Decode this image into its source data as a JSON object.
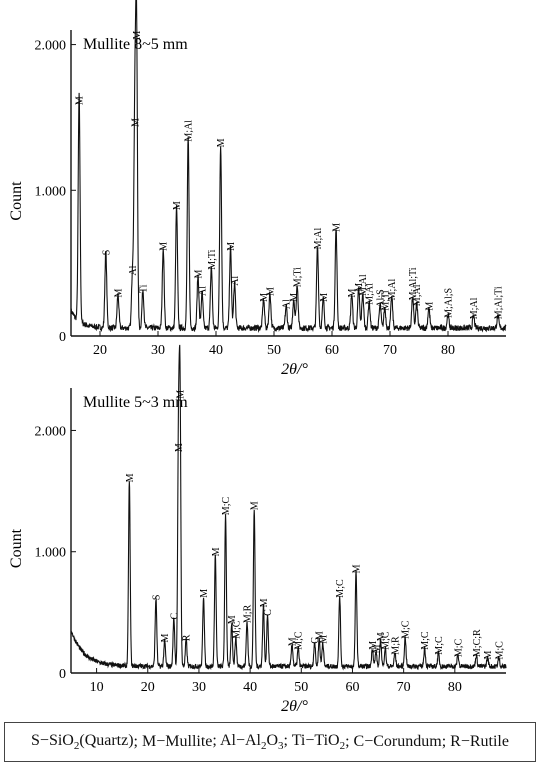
{
  "chart_data": [
    {
      "type": "line",
      "title": "Mullite 8~5 mm",
      "xlabel": "2θ/°",
      "ylabel": "Count",
      "xlim": [
        15,
        90
      ],
      "ylim": [
        0,
        2100
      ],
      "x_ticks": [
        20,
        30,
        40,
        50,
        60,
        70,
        80
      ],
      "y_ticks": [
        0,
        1000,
        2000
      ],
      "y_tick_labels": [
        "0",
        "1.000",
        "2.000"
      ],
      "peaks": [
        {
          "x": 16.4,
          "y": 1550,
          "label": "M"
        },
        {
          "x": 21.0,
          "y": 520,
          "label": "S"
        },
        {
          "x": 23.1,
          "y": 230,
          "label": "M"
        },
        {
          "x": 25.6,
          "y": 380,
          "label": "Al"
        },
        {
          "x": 26.0,
          "y": 1400,
          "label": "M"
        },
        {
          "x": 26.3,
          "y": 2000,
          "label": "M"
        },
        {
          "x": 27.4,
          "y": 260,
          "label": "Ti"
        },
        {
          "x": 30.9,
          "y": 550,
          "label": "M"
        },
        {
          "x": 33.2,
          "y": 830,
          "label": "M"
        },
        {
          "x": 35.2,
          "y": 1300,
          "label": "M;Al"
        },
        {
          "x": 36.9,
          "y": 360,
          "label": "M"
        },
        {
          "x": 37.6,
          "y": 240,
          "label": "Al"
        },
        {
          "x": 39.2,
          "y": 420,
          "label": "M;Ti"
        },
        {
          "x": 40.8,
          "y": 1260,
          "label": "M"
        },
        {
          "x": 42.5,
          "y": 550,
          "label": "M"
        },
        {
          "x": 43.2,
          "y": 310,
          "label": "Al"
        },
        {
          "x": 48.2,
          "y": 200,
          "label": "M"
        },
        {
          "x": 49.3,
          "y": 240,
          "label": "M"
        },
        {
          "x": 52.1,
          "y": 150,
          "label": "Al"
        },
        {
          "x": 53.4,
          "y": 200,
          "label": "M"
        },
        {
          "x": 54.0,
          "y": 300,
          "label": "M;Ti"
        },
        {
          "x": 57.5,
          "y": 560,
          "label": "M;Al"
        },
        {
          "x": 58.5,
          "y": 200,
          "label": "M"
        },
        {
          "x": 60.7,
          "y": 680,
          "label": "M"
        },
        {
          "x": 63.4,
          "y": 230,
          "label": "M"
        },
        {
          "x": 64.6,
          "y": 270,
          "label": "M"
        },
        {
          "x": 65.3,
          "y": 240,
          "label": "M;Al"
        },
        {
          "x": 66.4,
          "y": 180,
          "label": "M;Al"
        },
        {
          "x": 68.3,
          "y": 160,
          "label": "Al;S"
        },
        {
          "x": 69.1,
          "y": 140,
          "label": "M;Ti"
        },
        {
          "x": 70.3,
          "y": 210,
          "label": "M;Al"
        },
        {
          "x": 73.9,
          "y": 210,
          "label": "M;Al;Ti"
        },
        {
          "x": 74.6,
          "y": 170,
          "label": "M;Al"
        },
        {
          "x": 76.7,
          "y": 140,
          "label": "M"
        },
        {
          "x": 80.0,
          "y": 90,
          "label": "M;Al;S"
        },
        {
          "x": 84.4,
          "y": 80,
          "label": "M;Al"
        },
        {
          "x": 88.6,
          "y": 80,
          "label": "M;Al;Ti"
        }
      ]
    },
    {
      "type": "line",
      "title": "Mullite 5~3 mm",
      "xlabel": "2θ/°",
      "ylabel": "Count",
      "xlim": [
        5,
        90
      ],
      "ylim": [
        0,
        2350
      ],
      "x_ticks": [
        10,
        20,
        30,
        40,
        50,
        60,
        70,
        80
      ],
      "y_ticks": [
        0,
        1000,
        2000
      ],
      "y_tick_labels": [
        "0",
        "1.000",
        "2.000"
      ],
      "peaks": [
        {
          "x": 16.4,
          "y": 1530,
          "label": "M"
        },
        {
          "x": 21.6,
          "y": 560,
          "label": "S"
        },
        {
          "x": 23.3,
          "y": 210,
          "label": "M"
        },
        {
          "x": 25.1,
          "y": 400,
          "label": "C"
        },
        {
          "x": 26.0,
          "y": 1780,
          "label": "M"
        },
        {
          "x": 26.3,
          "y": 2220,
          "label": "M"
        },
        {
          "x": 27.5,
          "y": 220,
          "label": "R"
        },
        {
          "x": 30.9,
          "y": 580,
          "label": "M"
        },
        {
          "x": 33.2,
          "y": 920,
          "label": "M"
        },
        {
          "x": 35.2,
          "y": 1260,
          "label": "M;C"
        },
        {
          "x": 36.4,
          "y": 360,
          "label": "M"
        },
        {
          "x": 37.2,
          "y": 240,
          "label": "M;C"
        },
        {
          "x": 39.4,
          "y": 370,
          "label": "M;R"
        },
        {
          "x": 40.8,
          "y": 1300,
          "label": "M"
        },
        {
          "x": 42.6,
          "y": 500,
          "label": "M"
        },
        {
          "x": 43.4,
          "y": 430,
          "label": "C"
        },
        {
          "x": 48.2,
          "y": 180,
          "label": "M"
        },
        {
          "x": 49.4,
          "y": 150,
          "label": "M;C"
        },
        {
          "x": 52.6,
          "y": 200,
          "label": "C"
        },
        {
          "x": 53.5,
          "y": 230,
          "label": "M"
        },
        {
          "x": 54.2,
          "y": 200,
          "label": "M"
        },
        {
          "x": 57.5,
          "y": 580,
          "label": "M;C"
        },
        {
          "x": 60.7,
          "y": 780,
          "label": "M"
        },
        {
          "x": 63.9,
          "y": 150,
          "label": "M"
        },
        {
          "x": 64.6,
          "y": 120,
          "label": "M"
        },
        {
          "x": 65.5,
          "y": 220,
          "label": "M"
        },
        {
          "x": 66.4,
          "y": 150,
          "label": "M;C"
        },
        {
          "x": 68.3,
          "y": 110,
          "label": "M;R"
        },
        {
          "x": 70.3,
          "y": 240,
          "label": "M;C"
        },
        {
          "x": 74.1,
          "y": 150,
          "label": "M;C"
        },
        {
          "x": 76.8,
          "y": 110,
          "label": "M;C"
        },
        {
          "x": 80.6,
          "y": 90,
          "label": "M;C"
        },
        {
          "x": 84.2,
          "y": 90,
          "label": "M;C;R"
        },
        {
          "x": 86.4,
          "y": 70,
          "label": "M"
        },
        {
          "x": 88.6,
          "y": 70,
          "label": "M;C"
        }
      ]
    }
  ],
  "legend_items": [
    {
      "sym": "S",
      "name_parts": [
        "SiO",
        "2",
        "(Quartz)"
      ]
    },
    {
      "sym": "M",
      "name_parts": [
        "Mullite",
        "",
        ""
      ]
    },
    {
      "sym": "Al",
      "name_parts": [
        "Al",
        "2",
        "O",
        "3"
      ]
    },
    {
      "sym": "Ti",
      "name_parts": [
        "TiO",
        "2",
        ""
      ]
    },
    {
      "sym": "C",
      "name_parts": [
        "Corundum",
        "",
        ""
      ]
    },
    {
      "sym": "R",
      "name_parts": [
        "Rutile",
        "",
        ""
      ]
    }
  ],
  "legend_separator": "−"
}
